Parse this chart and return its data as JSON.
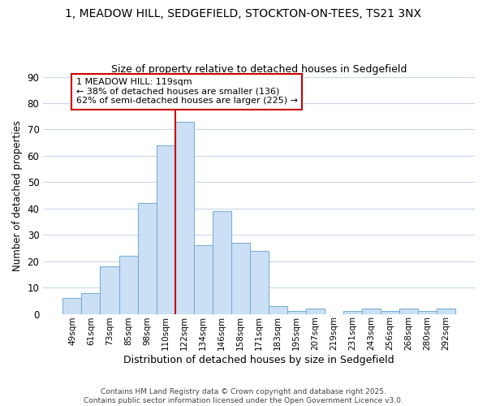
{
  "title_line1": "1, MEADOW HILL, SEDGEFIELD, STOCKTON-ON-TEES, TS21 3NX",
  "title_line2": "Size of property relative to detached houses in Sedgefield",
  "xlabel": "Distribution of detached houses by size in Sedgefield",
  "ylabel": "Number of detached properties",
  "categories": [
    "49sqm",
    "61sqm",
    "73sqm",
    "85sqm",
    "98sqm",
    "110sqm",
    "122sqm",
    "134sqm",
    "146sqm",
    "158sqm",
    "171sqm",
    "183sqm",
    "195sqm",
    "207sqm",
    "219sqm",
    "231sqm",
    "243sqm",
    "256sqm",
    "268sqm",
    "280sqm",
    "292sqm"
  ],
  "values": [
    6,
    8,
    18,
    22,
    42,
    64,
    73,
    26,
    39,
    27,
    24,
    3,
    1,
    2,
    0,
    1,
    2,
    1,
    2,
    1,
    2
  ],
  "bar_color": "#cce0f5",
  "bar_edge_color": "#7ab0d8",
  "ylim": [
    0,
    90
  ],
  "yticks": [
    0,
    10,
    20,
    30,
    40,
    50,
    60,
    70,
    80,
    90
  ],
  "vline_color": "#cc0000",
  "annotation_text_line1": "1 MEADOW HILL: 119sqm",
  "annotation_text_line2": "← 38% of detached houses are smaller (136)",
  "annotation_text_line3": "62% of semi-detached houses are larger (225) →",
  "background_color": "#ffffff",
  "grid_color": "#c8d8ec",
  "footer_line1": "Contains HM Land Registry data © Crown copyright and database right 2025.",
  "footer_line2": "Contains public sector information licensed under the Open Government Licence v3.0."
}
